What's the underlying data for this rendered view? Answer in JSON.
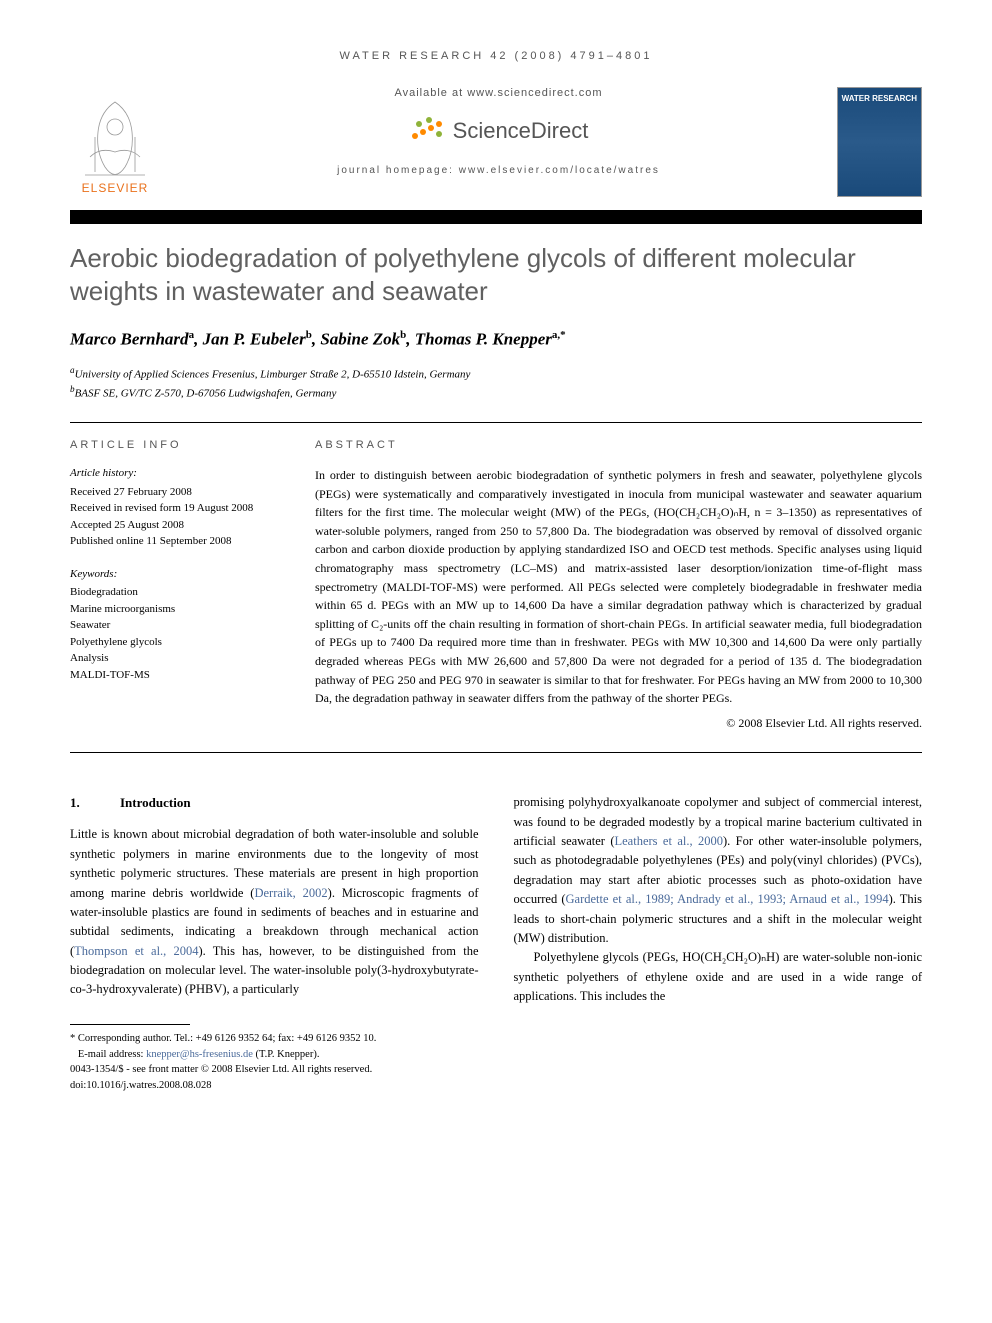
{
  "citation": "WATER RESEARCH 42 (2008) 4791–4801",
  "available_at": "Available at www.sciencedirect.com",
  "sciencedirect_label": "ScienceDirect",
  "journal_homepage": "journal homepage: www.elsevier.com/locate/watres",
  "journal_cover_title": "WATER RESEARCH",
  "title": "Aerobic biodegradation of polyethylene glycols of different molecular weights in wastewater and seawater",
  "authors_html": "Marco Bernhard<sup>a</sup>, Jan P. Eubeler<sup>b</sup>, Sabine Zok<sup>b</sup>, Thomas P. Knepper<sup>a,*</sup>",
  "affiliations": {
    "a": "University of Applied Sciences Fresenius, Limburger Straße 2, D-65510 Idstein, Germany",
    "b": "BASF SE, GV/TC Z-570, D-67056 Ludwigshafen, Germany"
  },
  "article_info": {
    "heading": "ARTICLE INFO",
    "history_label": "Article history:",
    "received": "Received 27 February 2008",
    "revised": "Received in revised form 19 August 2008",
    "accepted": "Accepted 25 August 2008",
    "published": "Published online 11 September 2008",
    "keywords_label": "Keywords:",
    "keywords": [
      "Biodegradation",
      "Marine microorganisms",
      "Seawater",
      "Polyethylene glycols",
      "Analysis",
      "MALDI-TOF-MS"
    ]
  },
  "abstract": {
    "heading": "ABSTRACT",
    "text": "In order to distinguish between aerobic biodegradation of synthetic polymers in fresh and seawater, polyethylene glycols (PEGs) were systematically and comparatively investigated in inocula from municipal wastewater and seawater aquarium filters for the first time. The molecular weight (MW) of the PEGs, (HO(CH₂CH₂O)ₙH, n = 3–1350) as representatives of water-soluble polymers, ranged from 250 to 57,800 Da. The biodegradation was observed by removal of dissolved organic carbon and carbon dioxide production by applying standardized ISO and OECD test methods. Specific analyses using liquid chromatography mass spectrometry (LC–MS) and matrix-assisted laser desorption/ionization time-of-flight mass spectrometry (MALDI-TOF-MS) were performed. All PEGs selected were completely biodegradable in freshwater media within 65 d. PEGs with an MW up to 14,600 Da have a similar degradation pathway which is characterized by gradual splitting of C₂-units off the chain resulting in formation of short-chain PEGs. In artificial seawater media, full biodegradation of PEGs up to 7400 Da required more time than in freshwater. PEGs with MW 10,300 and 14,600 Da were only partially degraded whereas PEGs with MW 26,600 and 57,800 Da were not degraded for a period of 135 d. The biodegradation pathway of PEG 250 and PEG 970 in seawater is similar to that for freshwater. For PEGs having an MW from 2000 to 10,300 Da, the degradation pathway in seawater differs from the pathway of the shorter PEGs.",
    "copyright": "© 2008 Elsevier Ltd. All rights reserved."
  },
  "section1": {
    "num": "1.",
    "heading": "Introduction",
    "col1_p1": "Little is known about microbial degradation of both water-insoluble and soluble synthetic polymers in marine environments due to the longevity of most synthetic polymeric structures. These materials are present in high proportion among marine debris worldwide (",
    "col1_ref1": "Derraik, 2002",
    "col1_p1b": "). Microscopic fragments of water-insoluble plastics are found in sediments of beaches and in estuarine and subtidal sediments, indicating a breakdown through mechanical action (",
    "col1_ref2": "Thompson et al., 2004",
    "col1_p1c": "). This has, however, to be distinguished from the biodegradation on molecular level. The water-insoluble poly(3-hydroxybutyrate-co-3-hydroxyvalerate) (PHBV), a particularly",
    "col2_p1": "promising polyhydroxyalkanoate copolymer and subject of commercial interest, was found to be degraded modestly by a tropical marine bacterium cultivated in artificial seawater (",
    "col2_ref1": "Leathers et al., 2000",
    "col2_p1b": "). For other water-insoluble polymers, such as photodegradable polyethylenes (PEs) and poly(vinyl chlorides) (PVCs), degradation may start after abiotic processes such as photo-oxidation have occurred (",
    "col2_ref2": "Gardette et al., 1989; Andrady et al., 1993; Arnaud et al., 1994",
    "col2_p1c": "). This leads to short-chain polymeric structures and a shift in the molecular weight (MW) distribution.",
    "col2_p2": "Polyethylene glycols (PEGs, HO(CH₂CH₂O)ₙH) are water-soluble non-ionic synthetic polyethers of ethylene oxide and are used in a wide range of applications. This includes the"
  },
  "footer": {
    "corresponding": "* Corresponding author. Tel.: +49 6126 9352 64; fax: +49 6126 9352 10.",
    "email_label": "E-mail address: ",
    "email": "knepper@hs-fresenius.de",
    "email_name": " (T.P. Knepper).",
    "issn": "0043-1354/$ - see front matter © 2008 Elsevier Ltd. All rights reserved.",
    "doi": "doi:10.1016/j.watres.2008.08.028"
  },
  "colors": {
    "elsevier_orange": "#e9711c",
    "sd_orange": "#ff8a00",
    "sd_green": "#8fb339",
    "link_blue": "#4a6a9a",
    "heading_grey": "#606060"
  }
}
